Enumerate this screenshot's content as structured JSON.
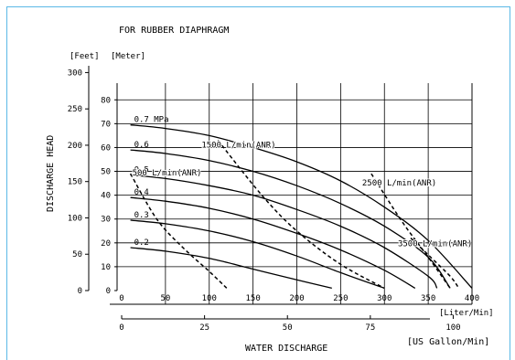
{
  "chart_data": {
    "type": "line",
    "title": "FOR RUBBER DIAPHRAGM",
    "ylabel": "DISCHARGE  HEAD",
    "xlabel": "WATER  DISCHARGE",
    "y_unit_feet": "[Feet]",
    "y_unit_meter": "[Meter]",
    "x_unit_liter": "[Liter/Min]",
    "x_unit_gallon": "[US Gallon/Min]",
    "feet_ticks": [
      "300",
      "250",
      "200",
      "150",
      "100",
      "50",
      "0"
    ],
    "meter_ticks": [
      "80",
      "70",
      "60",
      "50",
      "40",
      "30",
      "20",
      "10",
      "0"
    ],
    "liter_ticks": [
      "0",
      "50",
      "100",
      "150",
      "200",
      "250",
      "300",
      "350",
      "400"
    ],
    "gallon_ticks": [
      "0",
      "25",
      "50",
      "75",
      "100"
    ],
    "xlim_liter": [
      0,
      400
    ],
    "ylim_meter": [
      0,
      87
    ],
    "grid": true,
    "pressure_curves": [
      {
        "label": "0.7 MPa",
        "points": [
          [
            10,
            69.5
          ],
          [
            50,
            68
          ],
          [
            100,
            65
          ],
          [
            150,
            60
          ],
          [
            200,
            54
          ],
          [
            250,
            46
          ],
          [
            300,
            35
          ],
          [
            350,
            21
          ],
          [
            400,
            1
          ]
        ]
      },
      {
        "label": "0.6",
        "points": [
          [
            10,
            59
          ],
          [
            50,
            57.5
          ],
          [
            100,
            54.5
          ],
          [
            150,
            50
          ],
          [
            200,
            44
          ],
          [
            250,
            36.5
          ],
          [
            300,
            27
          ],
          [
            350,
            14
          ],
          [
            375,
            1
          ]
        ]
      },
      {
        "label": "0.5",
        "points": [
          [
            10,
            48.5
          ],
          [
            50,
            47
          ],
          [
            100,
            44
          ],
          [
            150,
            40
          ],
          [
            200,
            34
          ],
          [
            250,
            27
          ],
          [
            300,
            18
          ],
          [
            350,
            6
          ],
          [
            360,
            1
          ]
        ]
      },
      {
        "label": "0.4",
        "points": [
          [
            10,
            39
          ],
          [
            50,
            37.5
          ],
          [
            100,
            34.5
          ],
          [
            150,
            30
          ],
          [
            200,
            24
          ],
          [
            250,
            17
          ],
          [
            300,
            8.5
          ],
          [
            335,
            1
          ]
        ]
      },
      {
        "label": "0.3",
        "points": [
          [
            10,
            29.5
          ],
          [
            50,
            28
          ],
          [
            100,
            25
          ],
          [
            150,
            20.5
          ],
          [
            200,
            14.5
          ],
          [
            250,
            7.5
          ],
          [
            300,
            1
          ]
        ]
      },
      {
        "label": "0.2",
        "points": [
          [
            10,
            18
          ],
          [
            50,
            16.5
          ],
          [
            100,
            13.5
          ],
          [
            150,
            9
          ],
          [
            200,
            4.5
          ],
          [
            240,
            1
          ]
        ]
      }
    ],
    "air_curves": [
      {
        "label": "500 L/min(ANR)",
        "points": [
          [
            10,
            49
          ],
          [
            40,
            30
          ],
          [
            70,
            18
          ],
          [
            100,
            8
          ],
          [
            120,
            1
          ]
        ]
      },
      {
        "label": "1500 L/min(ANR)",
        "points": [
          [
            110,
            63
          ],
          [
            160,
            40
          ],
          [
            200,
            25
          ],
          [
            250,
            11
          ],
          [
            300,
            1
          ]
        ]
      },
      {
        "label": "2500 L/min(ANR)",
        "points": [
          [
            285,
            49
          ],
          [
            320,
            29
          ],
          [
            350,
            14
          ],
          [
            375,
            1
          ]
        ]
      },
      {
        "label": "3500 L/min(ANR)",
        "points": [
          [
            330,
            22
          ],
          [
            350,
            15
          ],
          [
            375,
            6
          ],
          [
            385,
            1
          ]
        ]
      }
    ]
  }
}
